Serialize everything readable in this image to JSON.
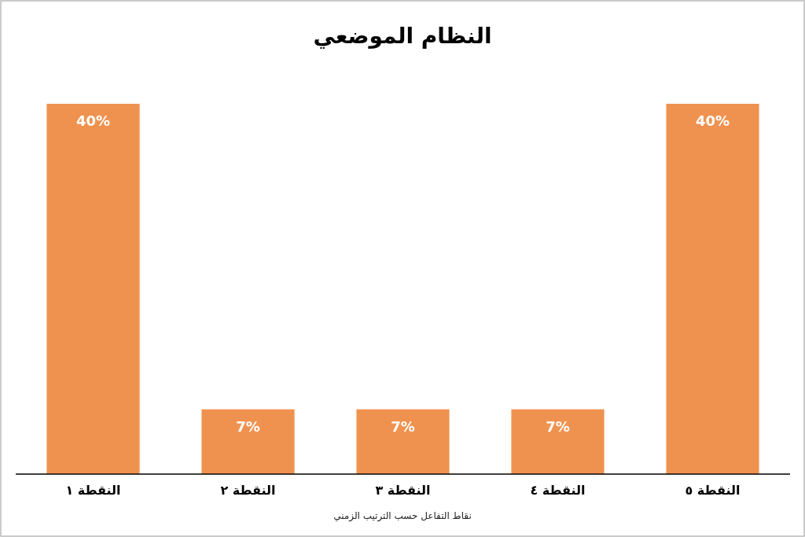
{
  "chart_data": {
    "type": "bar",
    "title": "النظام الموضعي",
    "xlabel": "نقاط التفاعل حسب الترتيب الزمني",
    "categories": [
      "النقطة ١",
      "النقطة ٢",
      "النقطة ٣",
      "النقطة ٤",
      "النقطة ٥"
    ],
    "values": [
      40,
      7,
      7,
      7,
      40
    ],
    "value_labels": [
      "40%",
      "7%",
      "7%",
      "7%",
      "40%"
    ],
    "color": "#f0924f"
  }
}
